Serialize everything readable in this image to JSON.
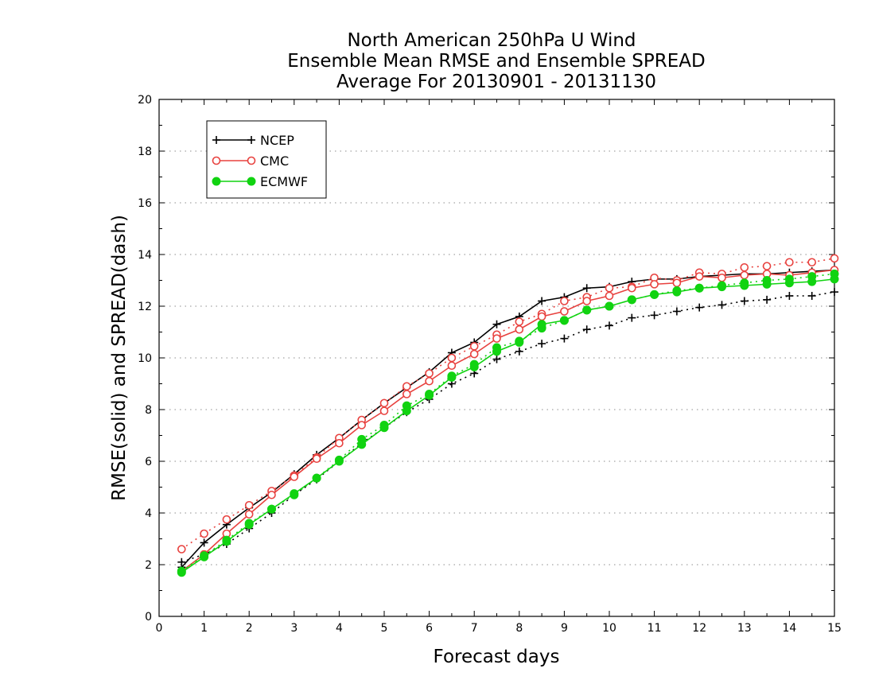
{
  "chart_data": {
    "type": "line",
    "title": [
      "North American 250hPa U Wind",
      "Ensemble Mean RMSE and Ensemble SPREAD",
      "Average For 20130901 - 20131130"
    ],
    "xlabel": "Forecast days",
    "ylabel": "RMSE(solid) and SPREAD(dash)",
    "xlim": [
      0,
      15
    ],
    "ylim": [
      0,
      20
    ],
    "xticks": [
      "0",
      "1",
      "2",
      "3",
      "4",
      "5",
      "6",
      "7",
      "8",
      "9",
      "10",
      "11",
      "12",
      "13",
      "14",
      "15"
    ],
    "yticks": [
      "0",
      "2",
      "4",
      "6",
      "8",
      "10",
      "12",
      "14",
      "16",
      "18",
      "20"
    ],
    "grid": "horizontal dotted",
    "legend_position": "top-left",
    "x": [
      0.5,
      1,
      1.5,
      2,
      2.5,
      3,
      3.5,
      4,
      4.5,
      5,
      5.5,
      6,
      6.5,
      7,
      7.5,
      8,
      8.5,
      9,
      9.5,
      10,
      10.5,
      11,
      11.5,
      12,
      12.5,
      13,
      13.5,
      14,
      14.5,
      15
    ],
    "series": [
      {
        "name": "NCEP",
        "color": "#000000",
        "marker": "plus",
        "rmse": [
          1.9,
          2.85,
          3.55,
          4.2,
          4.8,
          5.5,
          6.25,
          6.9,
          7.6,
          8.25,
          8.85,
          9.45,
          10.2,
          10.6,
          11.3,
          11.6,
          12.2,
          12.35,
          12.7,
          12.75,
          12.95,
          13.05,
          13.05,
          13.15,
          13.2,
          13.25,
          13.25,
          13.3,
          13.35,
          13.4
        ],
        "spread": [
          2.1,
          2.4,
          2.8,
          3.4,
          4.0,
          4.7,
          5.3,
          6.0,
          6.7,
          7.3,
          7.9,
          8.4,
          9.0,
          9.4,
          9.95,
          10.25,
          10.55,
          10.75,
          11.1,
          11.25,
          11.55,
          11.65,
          11.8,
          11.95,
          12.05,
          12.2,
          12.25,
          12.4,
          12.4,
          12.55
        ]
      },
      {
        "name": "CMC",
        "color": "#e8423f",
        "marker": "open-circle",
        "rmse": [
          1.75,
          2.4,
          3.2,
          3.95,
          4.7,
          5.4,
          6.1,
          6.7,
          7.4,
          7.95,
          8.6,
          9.1,
          9.7,
          10.15,
          10.75,
          11.1,
          11.6,
          11.8,
          12.2,
          12.4,
          12.7,
          12.85,
          12.9,
          13.15,
          13.1,
          13.2,
          13.25,
          13.2,
          13.3,
          13.4
        ],
        "spread": [
          2.6,
          3.2,
          3.75,
          4.3,
          4.85,
          5.45,
          6.15,
          6.9,
          7.6,
          8.25,
          8.9,
          9.4,
          10.0,
          10.45,
          10.9,
          11.4,
          11.7,
          12.2,
          12.35,
          12.7,
          12.75,
          13.1,
          13.0,
          13.3,
          13.25,
          13.5,
          13.55,
          13.7,
          13.7,
          13.85
        ]
      },
      {
        "name": "ECMWF",
        "color": "#11d311",
        "marker": "filled-circle",
        "rmse": [
          1.7,
          2.3,
          2.9,
          3.55,
          4.15,
          4.75,
          5.35,
          6.0,
          6.65,
          7.3,
          7.95,
          8.55,
          9.25,
          9.65,
          10.25,
          10.6,
          11.3,
          11.45,
          11.85,
          12.0,
          12.25,
          12.45,
          12.55,
          12.7,
          12.75,
          12.8,
          12.85,
          12.9,
          12.95,
          13.05
        ],
        "spread": [
          1.75,
          2.35,
          2.95,
          3.6,
          4.15,
          4.7,
          5.35,
          6.05,
          6.85,
          7.4,
          8.15,
          8.6,
          9.3,
          9.75,
          10.4,
          10.65,
          11.15,
          11.45,
          11.85,
          12.0,
          12.25,
          12.45,
          12.6,
          12.7,
          12.8,
          12.9,
          13.0,
          13.05,
          13.15,
          13.25
        ]
      }
    ]
  }
}
